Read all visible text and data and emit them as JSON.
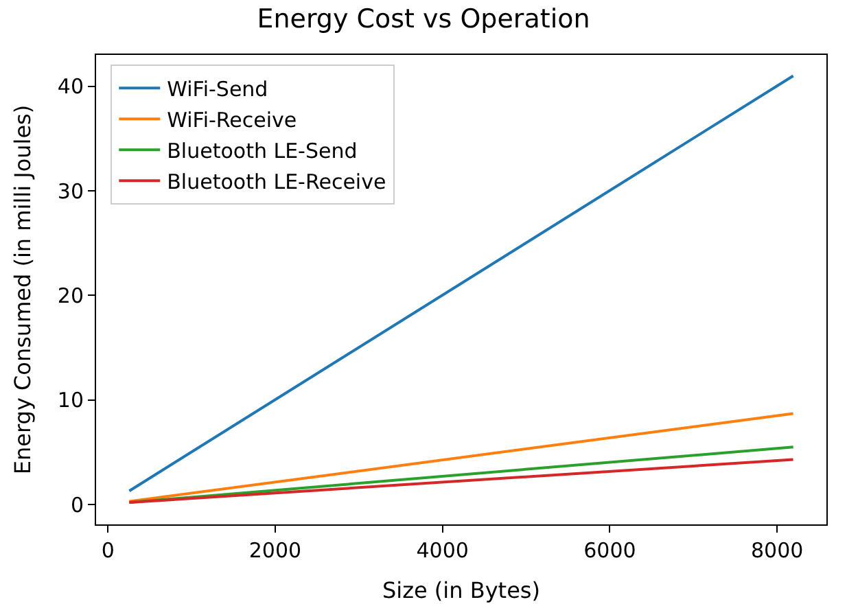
{
  "chart_data": {
    "type": "line",
    "title": "Energy Cost vs Operation",
    "xlabel": "Size (in Bytes)",
    "ylabel": "Energy Consumed (in milli Joules)",
    "x": [
      256,
      8192
    ],
    "series": [
      {
        "name": "WiFi-Send",
        "color": "#1f77b4",
        "values": [
          1.3,
          41
        ]
      },
      {
        "name": "WiFi-Receive",
        "color": "#ff7f0e",
        "values": [
          0.3,
          8.7
        ]
      },
      {
        "name": "Bluetooth LE-Send",
        "color": "#2ca02c",
        "values": [
          0.2,
          5.5
        ]
      },
      {
        "name": "Bluetooth LE-Receive",
        "color": "#d62728",
        "values": [
          0.2,
          4.3
        ]
      }
    ],
    "xlim": [
      -141,
      8589
    ],
    "ylim": [
      -1.9,
      43
    ],
    "xticks": [
      0,
      2000,
      4000,
      6000,
      8000
    ],
    "yticks": [
      0,
      10,
      20,
      30,
      40
    ],
    "legend": "top left"
  }
}
